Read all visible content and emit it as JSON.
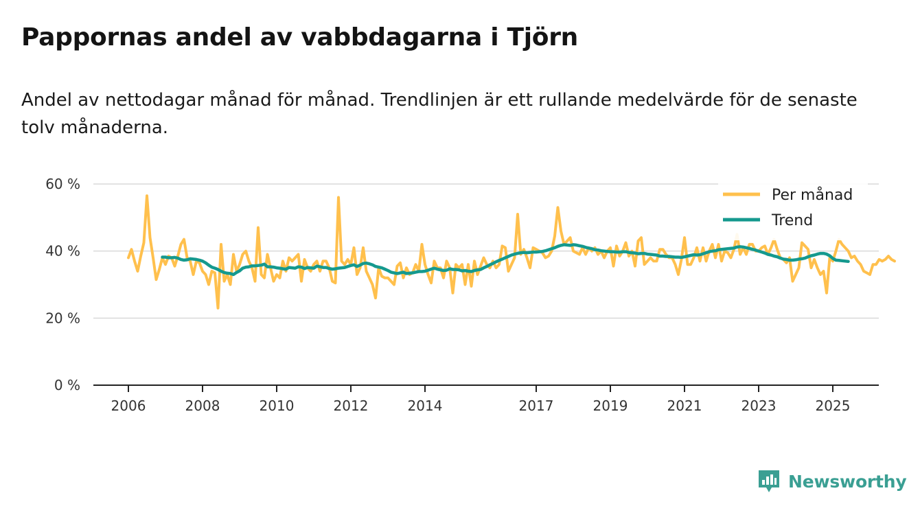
{
  "title": "Pappornas andel av vabbdagarna i Tjörn",
  "subtitle": "Andel av nettodagar månad för månad. Trendlinjen är ett rullande medelvärde för de senaste tolv månaderna.",
  "brand": {
    "name": "Newsworthy",
    "icon": "newsworthy-logo-icon"
  },
  "colors": {
    "monthly": "#ffc04d",
    "trend": "#15998e",
    "grid": "#d9d9d9",
    "axis": "#222222",
    "brand": "#3a9f93"
  },
  "chart_data": {
    "type": "line",
    "title": "Pappornas andel av vabbdagarna i Tjörn",
    "xlabel": "",
    "ylabel": "",
    "xlim": [
      2006.0,
      2025.9
    ],
    "ylim": [
      0,
      60
    ],
    "yticks": [
      0,
      20,
      40,
      60
    ],
    "ytick_labels": [
      "0 %",
      "20 %",
      "40 %",
      "60 %"
    ],
    "xticks": [
      2006,
      2008,
      2010,
      2012,
      2014,
      2017,
      2019,
      2021,
      2023,
      2025
    ],
    "xtick_labels": [
      "2006",
      "2008",
      "2010",
      "2012",
      "2014",
      "2017",
      "2019",
      "2021",
      "2023",
      "2025"
    ],
    "grid": true,
    "legend_position": "top-right",
    "series": [
      {
        "name": "Per månad",
        "start": 2006.0,
        "step": 0.08333,
        "values": [
          38,
          40.5,
          37,
          34,
          38.5,
          42.5,
          56.5,
          44,
          38,
          31.5,
          34.5,
          38,
          36,
          38.5,
          38,
          35.5,
          38.5,
          42,
          43.5,
          38,
          37,
          33,
          37,
          36.5,
          34,
          33,
          30,
          34,
          33.5,
          23,
          42,
          31,
          33,
          30,
          39,
          34,
          36,
          39,
          40,
          37,
          35,
          31,
          47,
          33,
          32,
          39,
          35,
          31,
          33,
          32,
          37,
          34,
          38,
          37,
          38,
          39,
          31,
          37.5,
          35,
          34,
          36,
          37,
          34,
          37,
          37,
          35,
          31,
          30.5,
          56,
          37,
          36,
          37.5,
          36,
          41,
          33,
          35,
          41,
          34,
          32,
          30,
          26,
          35,
          32.5,
          32,
          32,
          31,
          30,
          35.5,
          36.5,
          32,
          35,
          33,
          33.5,
          36,
          34,
          42,
          36,
          33,
          30.5,
          37,
          35,
          35,
          32,
          37,
          35,
          27.5,
          36,
          35,
          36,
          30,
          36,
          29.5,
          37,
          33,
          35.5,
          38,
          36,
          35,
          37,
          35,
          36,
          41.5,
          41,
          34,
          36,
          38,
          51,
          39,
          40.5,
          38,
          35,
          41,
          40.5,
          40,
          39.5,
          38,
          38.5,
          40,
          44.5,
          53,
          46,
          42,
          43,
          44,
          40,
          39.5,
          39,
          41,
          39,
          41,
          40,
          41,
          39,
          40,
          38,
          40,
          41,
          35.5,
          41.5,
          38.5,
          40,
          42.5,
          38.5,
          40,
          35.5,
          43,
          44,
          36,
          37,
          38,
          37,
          37,
          40.5,
          40.5,
          39,
          38,
          38,
          36,
          33,
          37.5,
          44,
          36,
          36,
          38,
          41,
          37,
          41,
          37,
          40,
          42,
          38,
          42,
          37,
          40,
          39.5,
          38,
          40.5,
          45,
          39,
          41,
          39,
          42,
          42,
          40,
          40,
          41,
          41.5,
          39,
          41,
          43.5,
          40.5,
          38,
          37.5,
          36.5,
          38,
          31,
          33,
          35,
          42.5,
          41.5,
          40.5,
          35,
          37.5,
          35,
          33,
          34,
          27.5,
          38,
          37,
          40,
          43.5,
          42,
          41,
          40,
          38,
          38.5,
          37,
          36,
          34,
          33.5,
          33,
          36,
          36,
          37.5,
          37,
          37.5,
          38.5,
          37.5,
          37
        ]
      },
      {
        "name": "Trend",
        "start": 2006.917,
        "step": 0.08333,
        "values": [
          38.2,
          38.2,
          38,
          38,
          38.1,
          37.9,
          37.5,
          37.3,
          37.4,
          37.7,
          37.6,
          37.5,
          37.3,
          37,
          36.5,
          35.8,
          35.2,
          34.9,
          34.5,
          34,
          33.6,
          33.4,
          33.3,
          33,
          33.6,
          34.1,
          34.9,
          35.2,
          35.3,
          35.6,
          35.6,
          35.7,
          35.8,
          36.1,
          35.3,
          35.3,
          35.2,
          35,
          34.9,
          34.7,
          34.6,
          35.1,
          35,
          34.9,
          35.3,
          35.2,
          34.8,
          35.1,
          35,
          34.9,
          35.5,
          35.3,
          35.1,
          35.1,
          34.8,
          34.6,
          34.7,
          34.9,
          35,
          35.1,
          35.4,
          35.7,
          35.9,
          35.4,
          35.8,
          36.3,
          36.4,
          36.2,
          35.9,
          35.4,
          35.2,
          35,
          34.6,
          34.2,
          33.7,
          33.5,
          33.3,
          33.5,
          33.7,
          33.3,
          33.4,
          33.5,
          33.7,
          33.9,
          33.9,
          34,
          34.3,
          34.6,
          34.9,
          34.6,
          34.4,
          34.2,
          34.3,
          34.7,
          34.5,
          34.5,
          34.4,
          34.1,
          34.2,
          34,
          33.9,
          34.2,
          34.4,
          34.5,
          35,
          35.4,
          35.9,
          36.3,
          36.8,
          37.2,
          37.6,
          38,
          38.4,
          38.8,
          39.1,
          39.3,
          39.5,
          39.6,
          39.5,
          39.6,
          39.7,
          39.7,
          39.8,
          39.9,
          40.1,
          40.4,
          40.7,
          41,
          41.4,
          41.7,
          41.9,
          41.8,
          41.7,
          41.9,
          41.8,
          41.6,
          41.4,
          41.1,
          40.9,
          40.7,
          40.4,
          40.3,
          40.1,
          40,
          39.9,
          39.8,
          39.8,
          39.7,
          39.7,
          39.8,
          39.8,
          39.6,
          39.5,
          39.4,
          39.2,
          39.3,
          39.3,
          39.1,
          39,
          38.9,
          38.8,
          38.5,
          38.5,
          38.4,
          38.4,
          38.3,
          38.2,
          38.2,
          38.1,
          38.3,
          38.5,
          38.7,
          38.9,
          38.8,
          38.9,
          39.2,
          39.5,
          39.8,
          40,
          40.1,
          40.4,
          40.5,
          40.6,
          40.7,
          40.8,
          40.9,
          41.2,
          41.3,
          41.2,
          41,
          40.8,
          40.5,
          40.3,
          40,
          39.7,
          39.4,
          39,
          38.8,
          38.5,
          38.3,
          37.9,
          37.6,
          37.5,
          37.3,
          37.3,
          37.4,
          37.6,
          37.7,
          37.9,
          38.3,
          38.6,
          38.8,
          39.1,
          39.3,
          39.3,
          39.1,
          38.6,
          37.8,
          37.3,
          37.2,
          37.1,
          37,
          36.9
        ]
      }
    ]
  }
}
